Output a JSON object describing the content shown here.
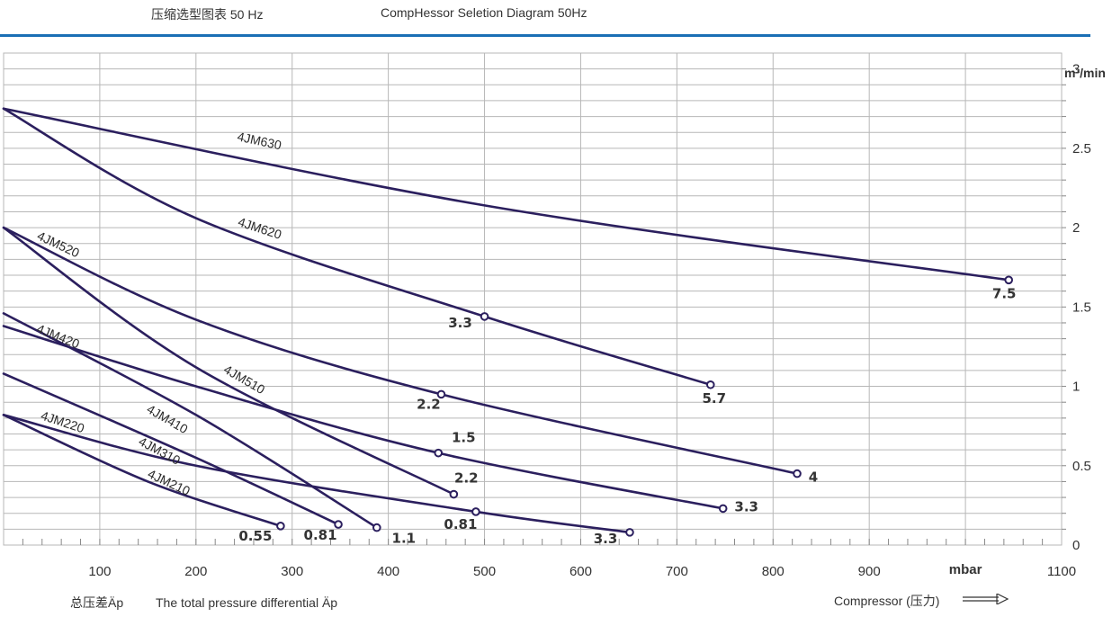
{
  "header": {
    "title_cn": "压缩选型图表 50 Hz",
    "title_en": "CompHessor Seletion Diagram 50Hz"
  },
  "footer": {
    "xlabel_cn": "总压差Äp",
    "xlabel_en": "The total pressure differential Äp",
    "compressor_label": "Compressor (压力)"
  },
  "colors": {
    "line": "#2b1f5e",
    "grid": "#b7b7b7",
    "accent": "#1a6fb5"
  },
  "chart_data": {
    "type": "line",
    "xlabel": "mbar",
    "ylabel": "m³/min",
    "xlim": [
      0,
      1100
    ],
    "ylim": [
      0,
      3.1
    ],
    "x_ticks": [
      {
        "value": 100,
        "label": "100"
      },
      {
        "value": 200,
        "label": "200"
      },
      {
        "value": 300,
        "label": "300"
      },
      {
        "value": 400,
        "label": "400"
      },
      {
        "value": 500,
        "label": "500"
      },
      {
        "value": 600,
        "label": "600"
      },
      {
        "value": 700,
        "label": "700"
      },
      {
        "value": 800,
        "label": "800"
      },
      {
        "value": 900,
        "label": "900"
      },
      {
        "value": 1000,
        "label": "mbar"
      },
      {
        "value": 1100,
        "label": "1100"
      }
    ],
    "y_ticks": [
      {
        "value": 0,
        "label": "0"
      },
      {
        "value": 0.5,
        "label": "0.5"
      },
      {
        "value": 1,
        "label": "1"
      },
      {
        "value": 1.5,
        "label": "1.5"
      },
      {
        "value": 2,
        "label": "2"
      },
      {
        "value": 2.5,
        "label": "2.5"
      },
      {
        "value": 3,
        "label": "3"
      }
    ],
    "series": [
      {
        "name": "4JM630",
        "points": [
          [
            0,
            2.75
          ],
          [
            500,
            2.14
          ],
          [
            1045,
            1.67
          ]
        ],
        "markers": [
          {
            "x": 1045,
            "y": 1.67,
            "label": "7.5"
          }
        ],
        "label_at": [
          265,
          2.52,
          -12
        ]
      },
      {
        "name": "4JM620",
        "points": [
          [
            0,
            2.75
          ],
          [
            200,
            2.06
          ],
          [
            500,
            1.44
          ],
          [
            735,
            1.01
          ]
        ],
        "markers": [
          {
            "x": 500,
            "y": 1.44,
            "label": "3.3"
          },
          {
            "x": 735,
            "y": 1.01,
            "label": "5.7"
          }
        ],
        "label_at": [
          265,
          1.97,
          -18
        ]
      },
      {
        "name": "4JM520",
        "points": [
          [
            0,
            2.0
          ],
          [
            200,
            1.42
          ],
          [
            455,
            0.95
          ],
          [
            825,
            0.45
          ]
        ],
        "markers": [
          {
            "x": 455,
            "y": 0.95,
            "label": "2.2"
          },
          {
            "x": 825,
            "y": 0.45,
            "label": "4"
          }
        ],
        "label_at": [
          55,
          1.87,
          -25
        ]
      },
      {
        "name": "4JM510",
        "points": [
          [
            0,
            2.0
          ],
          [
            200,
            1.12
          ],
          [
            468,
            0.32
          ]
        ],
        "markers": [
          {
            "x": 468,
            "y": 0.32,
            "label": "2.2"
          }
        ],
        "label_at": [
          248,
          1.02,
          -30
        ]
      },
      {
        "name": "4JM420",
        "points": [
          [
            0,
            1.38
          ],
          [
            200,
            1.0
          ],
          [
            452,
            0.58
          ],
          [
            748,
            0.23
          ]
        ],
        "markers": [
          {
            "x": 452,
            "y": 0.58,
            "label": "1.5"
          },
          {
            "x": 748,
            "y": 0.23,
            "label": "3.3"
          }
        ],
        "label_at": [
          55,
          1.29,
          -22
        ]
      },
      {
        "name": "4JM410",
        "points": [
          [
            0,
            1.46
          ],
          [
            200,
            0.82
          ],
          [
            388,
            0.11
          ]
        ],
        "markers": [
          {
            "x": 388,
            "y": 0.11,
            "label": "1.1"
          }
        ],
        "label_at": [
          168,
          0.77,
          -30
        ]
      },
      {
        "name": "4JM310",
        "points": [
          [
            0,
            1.08
          ],
          [
            200,
            0.55
          ],
          [
            348,
            0.13
          ]
        ],
        "markers": [
          {
            "x": 348,
            "y": 0.13,
            "label": "0.81"
          }
        ],
        "label_at": [
          160,
          0.57,
          -28
        ]
      },
      {
        "name": "4JM220",
        "points": [
          [
            0,
            0.82
          ],
          [
            200,
            0.5
          ],
          [
            491,
            0.21
          ],
          [
            651,
            0.08
          ]
        ],
        "markers": [
          {
            "x": 491,
            "y": 0.21,
            "label": "0.81"
          },
          {
            "x": 651,
            "y": 0.08,
            "label": "3.3"
          }
        ],
        "label_at": [
          60,
          0.75,
          -18
        ]
      },
      {
        "name": "4JM210",
        "points": [
          [
            0,
            0.82
          ],
          [
            150,
            0.4
          ],
          [
            288,
            0.12
          ]
        ],
        "markers": [
          {
            "x": 288,
            "y": 0.12,
            "label": "0.55"
          }
        ],
        "label_at": [
          170,
          0.37,
          -25
        ]
      }
    ]
  }
}
